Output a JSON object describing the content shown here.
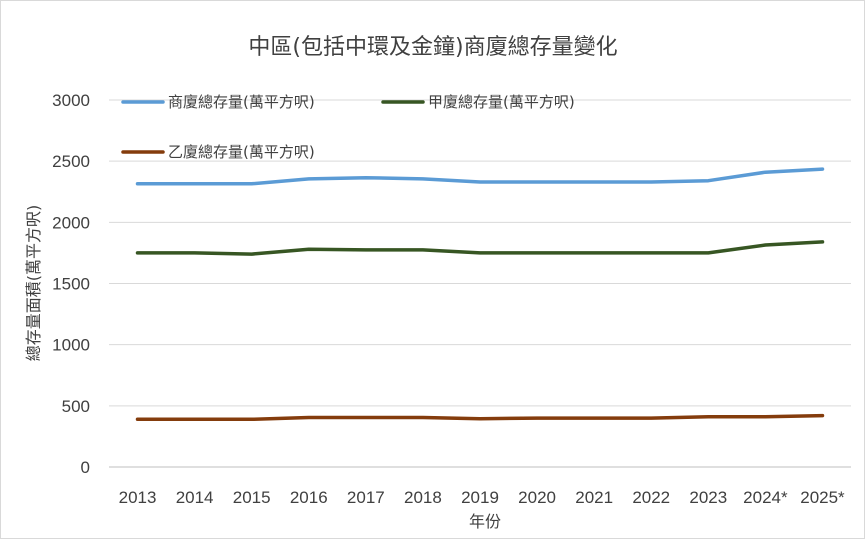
{
  "chart_data": {
    "type": "line",
    "title": "中區(包括中環及金鐘)商廈總存量變化",
    "xlabel": "年份",
    "ylabel": "總存量面積(萬平方呎)",
    "ylim": [
      0,
      3000
    ],
    "yticks": [
      "0",
      "500",
      "1000",
      "1500",
      "2000",
      "2500",
      "3000"
    ],
    "categories": [
      "2013",
      "2014",
      "2015",
      "2016",
      "2017",
      "2018",
      "2019",
      "2020",
      "2021",
      "2022",
      "2023",
      "2024*",
      "2025*"
    ],
    "grid": true,
    "legend_position": "top",
    "series": [
      {
        "name": "商廈總存量(萬平方呎)",
        "color": "#5b9bd5",
        "values": [
          2315,
          2315,
          2315,
          2355,
          2365,
          2355,
          2330,
          2330,
          2330,
          2330,
          2340,
          2410,
          2435
        ]
      },
      {
        "name": "甲廈總存量(萬平方呎)",
        "color": "#375623",
        "values": [
          1750,
          1750,
          1740,
          1780,
          1775,
          1775,
          1750,
          1750,
          1750,
          1750,
          1750,
          1815,
          1840
        ]
      },
      {
        "name": "乙廈總存量(萬平方呎)",
        "color": "#843c0c",
        "values": [
          390,
          390,
          390,
          405,
          405,
          405,
          395,
          400,
          400,
          400,
          410,
          410,
          420
        ]
      }
    ]
  }
}
